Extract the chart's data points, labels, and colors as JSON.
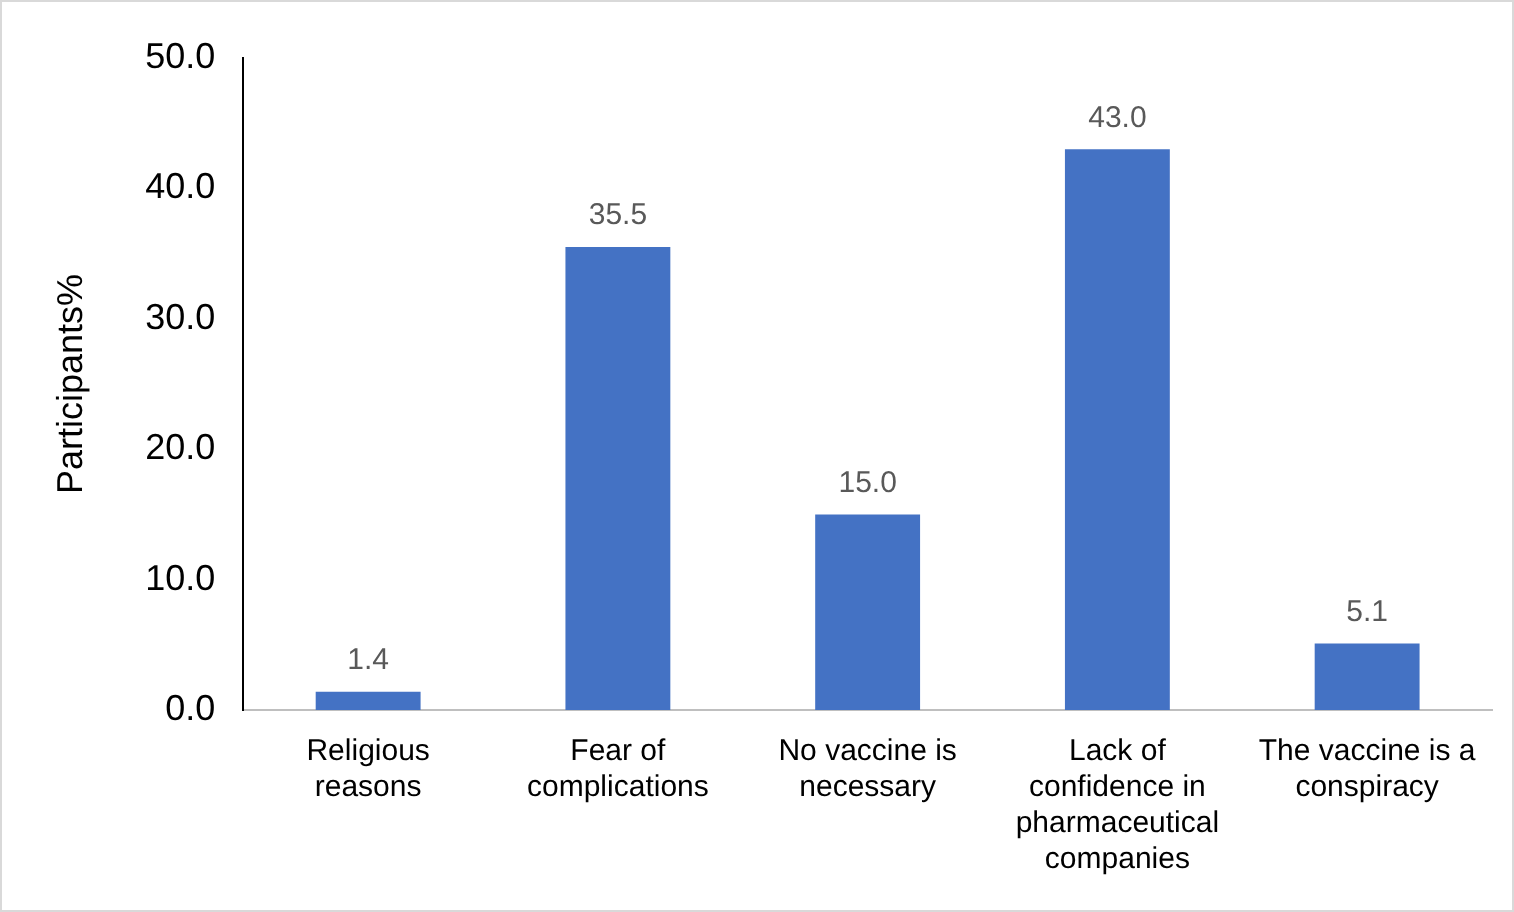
{
  "chart_data": {
    "type": "bar",
    "ylabel": "Participants%",
    "categories": [
      "Religious reasons",
      "Fear of complications",
      "No vaccine is necessary",
      "Lack of confidence in pharmaceutical companies",
      "The vaccine is a conspiracy"
    ],
    "values": [
      1.4,
      35.5,
      15.0,
      43.0,
      5.1
    ],
    "value_labels": [
      "1.4",
      "35.5",
      "15.0",
      "43.0",
      "5.1"
    ],
    "color": "#4472c4",
    "ylim": [
      0,
      50
    ],
    "yticks": [
      {
        "value": 0,
        "label": "0.0"
      },
      {
        "value": 10,
        "label": "10.0"
      },
      {
        "value": 20,
        "label": "20.0"
      },
      {
        "value": 30,
        "label": "30.0"
      },
      {
        "value": 40,
        "label": "40.0"
      },
      {
        "value": 50,
        "label": "50.0"
      }
    ],
    "grid": false,
    "legend": false
  }
}
